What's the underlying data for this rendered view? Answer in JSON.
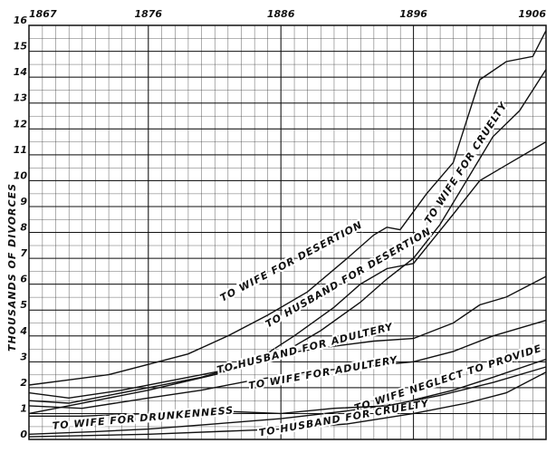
{
  "chart_data": {
    "type": "line",
    "y_label": "THOUSANDS OF DIVORCES",
    "xlim": [
      1867,
      1906
    ],
    "xticks": [
      1867,
      1876,
      1886,
      1896,
      1906
    ],
    "ylim": [
      0,
      16
    ],
    "yticks": [
      0,
      1,
      2,
      3,
      4,
      5,
      6,
      7,
      8,
      9,
      10,
      11,
      12,
      13,
      14,
      15,
      16
    ],
    "grid": true,
    "color": "#111",
    "series": [
      {
        "name": "TO WIFE FOR DESERTION",
        "x": [
          1867,
          1870,
          1873,
          1876,
          1879,
          1882,
          1885,
          1888,
          1891,
          1893,
          1894,
          1895,
          1897,
          1899,
          1901,
          1903,
          1905,
          1906
        ],
        "values": [
          2.1,
          2.3,
          2.5,
          2.9,
          3.3,
          4.0,
          4.8,
          5.7,
          7.0,
          7.9,
          8.2,
          8.1,
          9.5,
          10.7,
          13.9,
          14.6,
          14.8,
          15.8
        ]
      },
      {
        "name": "TO WIFE FOR CRUELTY",
        "x": [
          1867,
          1872,
          1876,
          1881,
          1886,
          1889,
          1892,
          1894,
          1896,
          1898,
          1900,
          1902,
          1904,
          1906
        ],
        "values": [
          1.0,
          1.5,
          1.9,
          2.5,
          3.3,
          4.2,
          5.3,
          6.2,
          7.0,
          8.3,
          10.0,
          11.7,
          12.7,
          14.3
        ]
      },
      {
        "name": "TO HUSBAND FOR DESERTION",
        "x": [
          1867,
          1870,
          1873,
          1876,
          1880,
          1884,
          1887,
          1890,
          1892,
          1894,
          1896,
          1899,
          1901,
          1903,
          1906
        ],
        "values": [
          1.5,
          1.4,
          1.7,
          2.0,
          2.4,
          3.0,
          4.0,
          5.1,
          6.0,
          6.6,
          6.8,
          8.7,
          10.0,
          10.6,
          11.5
        ]
      },
      {
        "name": "TO HUSBAND FOR ADULTERY",
        "x": [
          1867,
          1870,
          1874,
          1878,
          1882,
          1886,
          1890,
          1893,
          1896,
          1899,
          1901,
          1903,
          1906
        ],
        "values": [
          1.8,
          1.6,
          1.9,
          2.3,
          2.7,
          3.3,
          3.6,
          3.8,
          3.9,
          4.5,
          5.2,
          5.5,
          6.3
        ]
      },
      {
        "name": "TO WIFE FOR ADULTERY",
        "x": [
          1867,
          1871,
          1876,
          1880,
          1884,
          1888,
          1892,
          1896,
          1899,
          1902,
          1904,
          1906
        ],
        "values": [
          1.3,
          1.2,
          1.6,
          1.9,
          2.3,
          2.6,
          2.8,
          3.0,
          3.4,
          4.0,
          4.3,
          4.6
        ]
      },
      {
        "name": "TO WIFE NEGLECT TO PROVIDE",
        "x": [
          1867,
          1872,
          1876,
          1881,
          1886,
          1891,
          1895,
          1899,
          1902,
          1906
        ],
        "values": [
          0.2,
          0.3,
          0.4,
          0.6,
          0.8,
          1.1,
          1.4,
          1.9,
          2.4,
          3.1
        ]
      },
      {
        "name": "TO HUSBAND FOR CRUELTY",
        "x": [
          1867,
          1876,
          1886,
          1891,
          1896,
          1900,
          1903,
          1906
        ],
        "values": [
          0.1,
          0.2,
          0.4,
          0.6,
          1.0,
          1.4,
          1.8,
          2.6
        ]
      },
      {
        "name": "TO WIFE FOR DRUNKENNESS",
        "x": [
          1867,
          1871,
          1876,
          1881,
          1886,
          1890,
          1894,
          1898,
          1902,
          1906
        ],
        "values": [
          0.9,
          0.9,
          1.0,
          1.1,
          1.0,
          1.2,
          1.3,
          1.7,
          2.2,
          2.8
        ]
      }
    ]
  }
}
